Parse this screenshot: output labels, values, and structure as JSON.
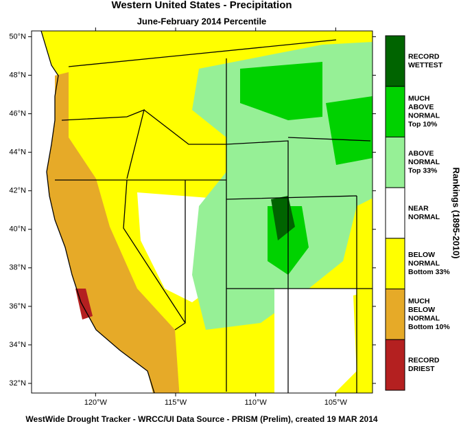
{
  "title": "Western United States - Precipitation",
  "subtitle": "June-February 2014 Percentile",
  "map": {
    "lat_range": [
      31.5,
      50.3
    ],
    "lon_range": [
      -124,
      -102.7
    ],
    "lat_ticks": [
      {
        "value": 50,
        "label": "50°N"
      },
      {
        "value": 48,
        "label": "48°N"
      },
      {
        "value": 46,
        "label": "46°N"
      },
      {
        "value": 44,
        "label": "44°N"
      },
      {
        "value": 42,
        "label": "42°N"
      },
      {
        "value": 40,
        "label": "40°N"
      },
      {
        "value": 38,
        "label": "38°N"
      },
      {
        "value": 36,
        "label": "36°N"
      },
      {
        "value": 34,
        "label": "34°N"
      },
      {
        "value": 32,
        "label": "32°N"
      }
    ],
    "lon_ticks": [
      {
        "value": -120,
        "label": "120°W"
      },
      {
        "value": -115,
        "label": "115°W"
      },
      {
        "value": -110,
        "label": "110°W"
      },
      {
        "value": -105,
        "label": "105°W"
      }
    ]
  },
  "legend": {
    "title": "Rankings (1895-2010)",
    "items": [
      {
        "color": "#006400",
        "lines": [
          "RECORD",
          "WETTEST"
        ]
      },
      {
        "color": "#00d200",
        "lines": [
          "MUCH",
          "ABOVE",
          "NORMAL",
          "Top 10%"
        ]
      },
      {
        "color": "#96f096",
        "lines": [
          "ABOVE",
          "NORMAL",
          "Top 33%"
        ]
      },
      {
        "color": "#ffffff",
        "lines": [
          "NEAR",
          "NORMAL"
        ]
      },
      {
        "color": "#ffff00",
        "lines": [
          "BELOW",
          "NORMAL",
          "Bottom 33%"
        ]
      },
      {
        "color": "#e6aa28",
        "lines": [
          "MUCH",
          "BELOW",
          "NORMAL",
          "Bottom 10%"
        ]
      },
      {
        "color": "#b42020",
        "lines": [
          "RECORD",
          "DRIEST"
        ]
      }
    ]
  },
  "footer": "WestWide Drought Tracker - WRCC/UI  Data Source - PRISM (Prelim), created 19 MAR 2014"
}
